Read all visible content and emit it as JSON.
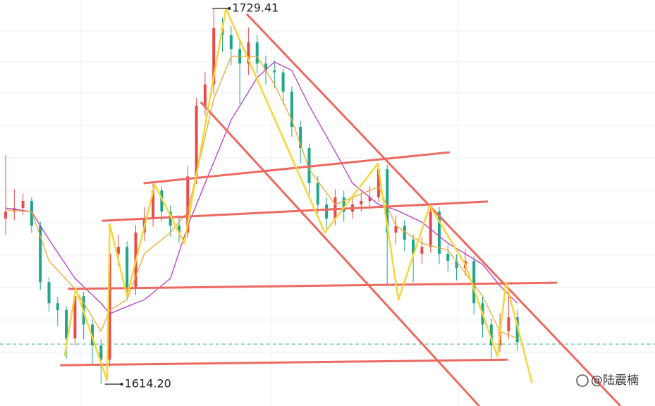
{
  "chart_data": {
    "type": "candlestick",
    "xlim": [
      -0.65,
      74.88
    ],
    "ylim": [
      1607.5,
      1732
    ],
    "up_color": "#e84b4b",
    "down_color": "#1fa68a",
    "open": [
      1665.0,
      1667.1,
      1668.2,
      1670.4,
      1662.8,
      1645.5,
      1639.0,
      1636.9,
      1628.2,
      1641.2,
      1632.5,
      1626.1,
      1621.7,
      1654.2,
      1656.3,
      1643.4,
      1660.7,
      1665.0,
      1673.6,
      1667.1,
      1662.8,
      1660.7,
      1677.9,
      1699.6,
      1706.1,
      1723.4,
      1721.2,
      1716.9,
      1712.5,
      1719.0,
      1712.5,
      1710.4,
      1709.8,
      1703.9,
      1693.1,
      1686.6,
      1675.8,
      1669.3,
      1665.0,
      1671.5,
      1667.1,
      1669.3,
      1670.4,
      1671.5,
      1680.1,
      1660.7,
      1662.8,
      1658.5,
      1654.2,
      1656.3,
      1667.1,
      1654.2,
      1652.0,
      1649.8,
      1652.0,
      1639.0,
      1632.5,
      1626.1,
      1630.4,
      1634.7
    ],
    "high": [
      1684.4,
      1674.0,
      1672.6,
      1671.5,
      1664.0,
      1647.0,
      1641.0,
      1638.0,
      1643.5,
      1642.5,
      1634.0,
      1628.0,
      1657.0,
      1660.0,
      1658.0,
      1663.0,
      1668.5,
      1676.0,
      1675.0,
      1669.0,
      1666.0,
      1681.0,
      1702.0,
      1710.0,
      1729.41,
      1726.5,
      1724.0,
      1720.0,
      1723.5,
      1721.5,
      1715.0,
      1713.5,
      1711.0,
      1705.5,
      1695.0,
      1688.0,
      1678.0,
      1671.5,
      1674.0,
      1673.5,
      1672.0,
      1673.0,
      1675.0,
      1682.0,
      1681.5,
      1666.0,
      1664.5,
      1660.0,
      1659.5,
      1669.0,
      1668.5,
      1657.0,
      1654.0,
      1655.5,
      1653.5,
      1641.0,
      1634.5,
      1636.0,
      1643.0,
      1637.0
    ],
    "low": [
      1660.0,
      1664.5,
      1666.0,
      1660.6,
      1643.0,
      1636.5,
      1632.0,
      1622.0,
      1626.0,
      1628.0,
      1620.5,
      1614.2,
      1619.5,
      1650.5,
      1640.0,
      1641.5,
      1658.0,
      1662.5,
      1664.0,
      1659.5,
      1657.5,
      1659.0,
      1675.5,
      1696.5,
      1703.0,
      1716.0,
      1712.0,
      1700.0,
      1709.0,
      1709.5,
      1706.0,
      1705.0,
      1700.0,
      1690.0,
      1682.0,
      1672.0,
      1666.5,
      1661.5,
      1663.0,
      1664.0,
      1665.0,
      1667.0,
      1668.0,
      1670.0,
      1644.5,
      1657.0,
      1655.0,
      1645.5,
      1651.0,
      1654.5,
      1651.0,
      1648.5,
      1646.0,
      1647.5,
      1635.5,
      1628.5,
      1622.0,
      1624.0,
      1628.0,
      1624.5
    ],
    "close": [
      1667.1,
      1668.2,
      1670.4,
      1662.8,
      1645.5,
      1639.0,
      1636.9,
      1628.2,
      1641.2,
      1632.5,
      1626.1,
      1621.7,
      1654.2,
      1656.3,
      1643.4,
      1660.7,
      1665.0,
      1673.6,
      1667.1,
      1662.8,
      1660.7,
      1677.9,
      1699.6,
      1706.1,
      1723.4,
      1721.2,
      1716.9,
      1712.5,
      1719.0,
      1712.5,
      1710.4,
      1709.8,
      1703.9,
      1693.1,
      1686.6,
      1675.8,
      1669.3,
      1665.0,
      1671.5,
      1667.1,
      1669.3,
      1670.4,
      1671.5,
      1680.1,
      1660.7,
      1662.8,
      1658.5,
      1654.2,
      1656.3,
      1667.1,
      1654.2,
      1652.0,
      1649.8,
      1652.0,
      1639.0,
      1632.5,
      1626.1,
      1630.4,
      1634.7,
      1627.1
    ],
    "moving_averages": [
      {
        "color": "#b83cc9",
        "x": [
          0,
          3,
          5,
          8,
          11,
          12,
          14,
          16,
          19,
          21,
          24,
          26,
          29,
          31,
          33,
          35,
          38,
          40,
          43,
          45,
          48,
          51,
          55,
          57,
          59
        ],
        "values": [
          1668.2,
          1667.1,
          1658.5,
          1646.6,
          1639.0,
          1635.8,
          1638.0,
          1640.1,
          1646.6,
          1662.8,
          1682.3,
          1695.2,
          1708.2,
          1713.0,
          1710.4,
          1699.6,
          1685.5,
          1675.8,
          1669.3,
          1667.6,
          1663.9,
          1657.4,
          1650.9,
          1644.4,
          1639.0
        ]
      },
      {
        "color": "#f0a830",
        "x": [
          0,
          3,
          5,
          8,
          11,
          12,
          14,
          16,
          19,
          21,
          24,
          26,
          29,
          31,
          33,
          35,
          38,
          40,
          43,
          45,
          48,
          51,
          55,
          57,
          59
        ],
        "values": [
          1667.6,
          1667.1,
          1652.0,
          1643.4,
          1630.4,
          1636.9,
          1640.1,
          1654.2,
          1660.7,
          1667.1,
          1701.7,
          1714.7,
          1714.7,
          1706.1,
          1695.2,
          1680.1,
          1669.3,
          1671.5,
          1674.7,
          1662.8,
          1657.4,
          1655.3,
          1641.2,
          1630.4,
          1628.2
        ]
      }
    ],
    "zigzag": {
      "color": "#f7d637",
      "x": [
        6.8,
        8.1,
        11.7,
        12.0,
        14.0,
        17.2,
        20.6,
        25.4,
        36.8,
        42.9,
        45.3,
        48.9,
        53.0,
        56.7,
        57.7,
        60.7
      ],
      "values": [
        1622.8,
        1643.4,
        1615.3,
        1663.2,
        1641.2,
        1675.4,
        1657.4,
        1729.4,
        1660.7,
        1681.8,
        1640.1,
        1668.9,
        1650.9,
        1622.8,
        1645.5,
        1614.6
      ]
    },
    "trendline_color": "#ec6a62",
    "trendlines": [
      {
        "x": [
          6.3,
          57.9
        ],
        "values": [
          1620.0,
          1621.7
        ]
      },
      {
        "x": [
          7.2,
          63.6
        ],
        "values": [
          1643.4,
          1645.3
        ]
      },
      {
        "x": [
          11.1,
          55.6
        ],
        "values": [
          1664.3,
          1670.2
        ]
      },
      {
        "x": [
          15.9,
          51.2
        ],
        "values": [
          1675.8,
          1685.3
        ]
      },
      {
        "x": [
          27.8,
          70.9
        ],
        "values": [
          1727.7,
          1607.5
        ]
      },
      {
        "x": [
          22.5,
          54.6
        ],
        "values": [
          1700.7,
          1607.5
        ]
      }
    ],
    "price_line": {
      "value": 1626.5,
      "color": "#3fb08f"
    },
    "annotations": [
      {
        "x": 24,
        "value": 1729.41,
        "label": "1729.41"
      },
      {
        "x": 11.6,
        "value": 1614.2,
        "label": "1614.20"
      }
    ],
    "watermark": "@陆震楠"
  }
}
